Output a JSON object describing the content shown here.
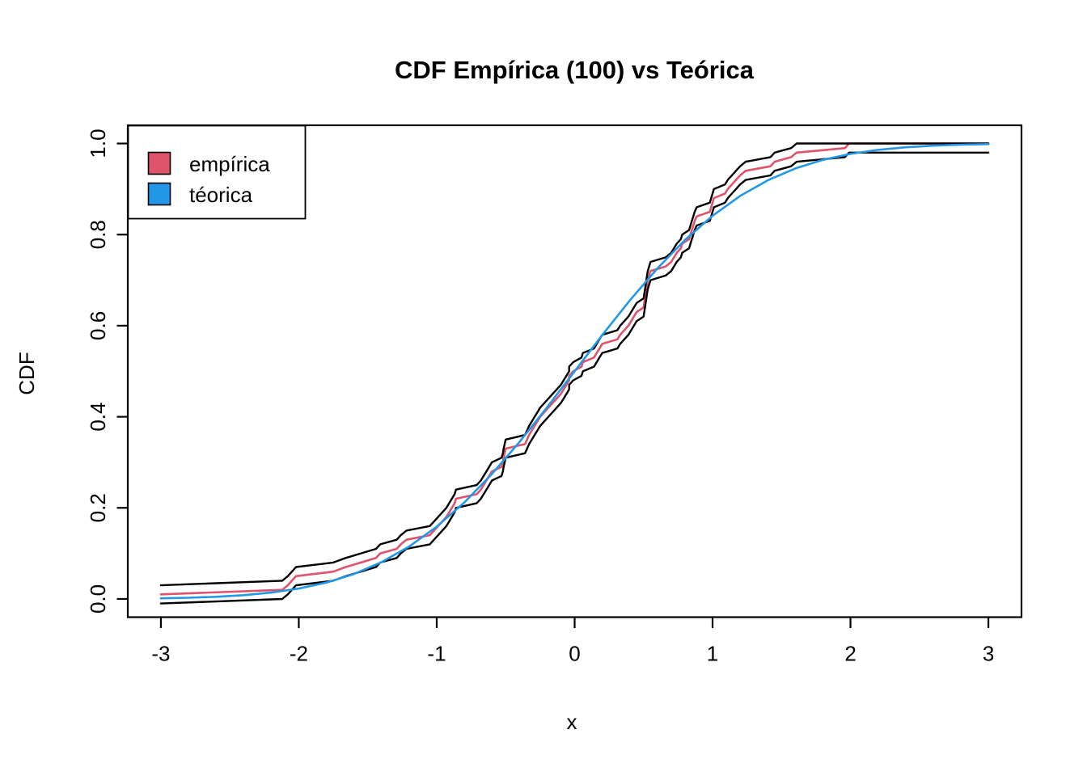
{
  "title": "CDF Empírica (100) vs Teórica",
  "axes": {
    "xlabel": "x",
    "ylabel": "CDF",
    "x_tick_labels": [
      "-3",
      "-2",
      "-1",
      "0",
      "1",
      "2",
      "3"
    ],
    "y_tick_labels": [
      "0.0",
      "0.2",
      "0.4",
      "0.6",
      "0.8",
      "1.0"
    ]
  },
  "legend": {
    "items": [
      {
        "label": "empírica",
        "color": "#DF536B"
      },
      {
        "label": "téorica",
        "color": "#2297E6"
      }
    ]
  },
  "chart_data": {
    "type": "line",
    "title": "CDF Empírica (100) vs Teórica",
    "xlabel": "x",
    "ylabel": "CDF",
    "xlim": [
      -3.24,
      3.24
    ],
    "ylim": [
      -0.04,
      1.04
    ],
    "x_ticks": [
      -3,
      -2,
      -1,
      0,
      1,
      2,
      3
    ],
    "y_ticks": [
      0.0,
      0.2,
      0.4,
      0.6,
      0.8,
      1.0
    ],
    "grid": false,
    "legend_position": "topleft",
    "n_samples": 100,
    "band_half_width": 0.02,
    "band_color": "#000000",
    "series": [
      {
        "name": "empírica",
        "role": "empirical",
        "color": "#DF536B",
        "points": [
          [
            -3.0,
            0.01
          ],
          [
            -2.12,
            0.02
          ],
          [
            -2.08,
            0.03
          ],
          [
            -2.05,
            0.04
          ],
          [
            -2.02,
            0.05
          ],
          [
            -1.75,
            0.06
          ],
          [
            -1.66,
            0.07
          ],
          [
            -1.55,
            0.08
          ],
          [
            -1.44,
            0.09
          ],
          [
            -1.41,
            0.1
          ],
          [
            -1.29,
            0.11
          ],
          [
            -1.26,
            0.12
          ],
          [
            -1.22,
            0.13
          ],
          [
            -1.05,
            0.14
          ],
          [
            -1.02,
            0.15
          ],
          [
            -0.99,
            0.16
          ],
          [
            -0.96,
            0.17
          ],
          [
            -0.93,
            0.18
          ],
          [
            -0.91,
            0.19
          ],
          [
            -0.89,
            0.2
          ],
          [
            -0.87,
            0.21
          ],
          [
            -0.86,
            0.22
          ],
          [
            -0.71,
            0.23
          ],
          [
            -0.68,
            0.24
          ],
          [
            -0.66,
            0.25
          ],
          [
            -0.64,
            0.26
          ],
          [
            -0.62,
            0.27
          ],
          [
            -0.6,
            0.28
          ],
          [
            -0.53,
            0.29
          ],
          [
            -0.52,
            0.3
          ],
          [
            -0.515,
            0.31
          ],
          [
            -0.507,
            0.32
          ],
          [
            -0.5,
            0.33
          ],
          [
            -0.36,
            0.34
          ],
          [
            -0.345,
            0.35
          ],
          [
            -0.33,
            0.36
          ],
          [
            -0.31,
            0.37
          ],
          [
            -0.29,
            0.38
          ],
          [
            -0.27,
            0.39
          ],
          [
            -0.25,
            0.4
          ],
          [
            -0.22,
            0.41
          ],
          [
            -0.19,
            0.42
          ],
          [
            -0.16,
            0.43
          ],
          [
            -0.13,
            0.44
          ],
          [
            -0.1,
            0.45
          ],
          [
            -0.08,
            0.46
          ],
          [
            -0.06,
            0.47
          ],
          [
            -0.04,
            0.48
          ],
          [
            -0.04,
            0.49
          ],
          [
            -0.01,
            0.5
          ],
          [
            0.05,
            0.51
          ],
          [
            0.06,
            0.52
          ],
          [
            0.14,
            0.53
          ],
          [
            0.16,
            0.54
          ],
          [
            0.18,
            0.55
          ],
          [
            0.2,
            0.56
          ],
          [
            0.31,
            0.57
          ],
          [
            0.33,
            0.58
          ],
          [
            0.36,
            0.59
          ],
          [
            0.39,
            0.6
          ],
          [
            0.41,
            0.61
          ],
          [
            0.43,
            0.62
          ],
          [
            0.45,
            0.63
          ],
          [
            0.5,
            0.64
          ],
          [
            0.505,
            0.65
          ],
          [
            0.51,
            0.66
          ],
          [
            0.515,
            0.67
          ],
          [
            0.52,
            0.68
          ],
          [
            0.525,
            0.69
          ],
          [
            0.53,
            0.7
          ],
          [
            0.54,
            0.71
          ],
          [
            0.55,
            0.72
          ],
          [
            0.66,
            0.73
          ],
          [
            0.7,
            0.74
          ],
          [
            0.72,
            0.75
          ],
          [
            0.74,
            0.76
          ],
          [
            0.77,
            0.77
          ],
          [
            0.78,
            0.78
          ],
          [
            0.83,
            0.79
          ],
          [
            0.84,
            0.8
          ],
          [
            0.85,
            0.81
          ],
          [
            0.86,
            0.82
          ],
          [
            0.87,
            0.83
          ],
          [
            0.885,
            0.84
          ],
          [
            0.98,
            0.85
          ],
          [
            0.99,
            0.86
          ],
          [
            1.0,
            0.87
          ],
          [
            1.01,
            0.88
          ],
          [
            1.09,
            0.89
          ],
          [
            1.11,
            0.9
          ],
          [
            1.14,
            0.91
          ],
          [
            1.17,
            0.92
          ],
          [
            1.2,
            0.93
          ],
          [
            1.24,
            0.94
          ],
          [
            1.42,
            0.95
          ],
          [
            1.45,
            0.96
          ],
          [
            1.57,
            0.97
          ],
          [
            1.61,
            0.98
          ],
          [
            1.96,
            0.99
          ],
          [
            1.99,
            1.0
          ],
          [
            3.0,
            1.0
          ]
        ]
      },
      {
        "name": "banda superior",
        "role": "band-upper",
        "color": "#000000",
        "rule": "min(empírica + 0.02, 1)"
      },
      {
        "name": "banda inferior",
        "role": "band-lower",
        "color": "#000000",
        "rule": "empírica - 0.02"
      },
      {
        "name": "téorica",
        "role": "theoretical",
        "color": "#2297E6",
        "points": [
          [
            -3.0,
            0.0013
          ],
          [
            -2.8,
            0.0026
          ],
          [
            -2.6,
            0.0047
          ],
          [
            -2.4,
            0.0082
          ],
          [
            -2.2,
            0.0139
          ],
          [
            -2.0,
            0.0228
          ],
          [
            -1.8,
            0.0359
          ],
          [
            -1.6,
            0.0548
          ],
          [
            -1.4,
            0.0808
          ],
          [
            -1.2,
            0.1151
          ],
          [
            -1.0,
            0.1587
          ],
          [
            -0.8,
            0.2119
          ],
          [
            -0.6,
            0.2743
          ],
          [
            -0.4,
            0.3446
          ],
          [
            -0.2,
            0.4207
          ],
          [
            0.0,
            0.5
          ],
          [
            0.2,
            0.5793
          ],
          [
            0.4,
            0.6554
          ],
          [
            0.6,
            0.7257
          ],
          [
            0.8,
            0.7881
          ],
          [
            1.0,
            0.8413
          ],
          [
            1.2,
            0.8849
          ],
          [
            1.4,
            0.9192
          ],
          [
            1.6,
            0.9452
          ],
          [
            1.8,
            0.9641
          ],
          [
            2.0,
            0.9772
          ],
          [
            2.2,
            0.9861
          ],
          [
            2.4,
            0.9918
          ],
          [
            2.6,
            0.9953
          ],
          [
            2.8,
            0.9974
          ],
          [
            3.0,
            0.9987
          ]
        ]
      }
    ]
  }
}
